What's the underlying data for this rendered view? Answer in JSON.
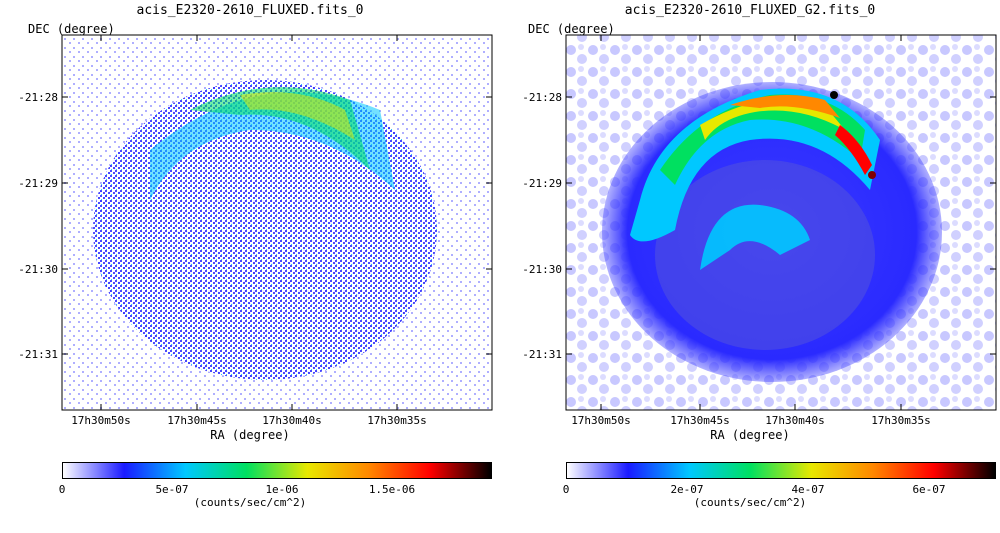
{
  "panels": [
    {
      "id": "raw",
      "title": "acis_E2320-2610_FLUXED.fits_0",
      "y_axis_label": "DEC (degree)",
      "x_axis_label": "RA (degree)",
      "dec_ticks": [
        "-21:28",
        "-21:29",
        "-21:30",
        "-21:31"
      ],
      "ra_ticks": [
        "17h30m50s",
        "17h30m45s",
        "17h30m40s",
        "17h30m35s"
      ],
      "colorbar": {
        "ticks": [
          "0",
          "5e-07",
          "1e-06",
          "1.5e-06"
        ],
        "unit": "(counts/sec/cm^2)"
      }
    },
    {
      "id": "smoothed",
      "title": "acis_E2320-2610_FLUXED_G2.fits_0",
      "y_axis_label": "DEC (degree)",
      "x_axis_label": "RA (degree)",
      "dec_ticks": [
        "-21:28",
        "-21:29",
        "-21:30",
        "-21:31"
      ],
      "ra_ticks": [
        "17h30m50s",
        "17h30m45s",
        "17h30m40s",
        "17h30m35s"
      ],
      "colorbar": {
        "ticks": [
          "0",
          "2e-07",
          "4e-07",
          "6e-07"
        ],
        "unit": "(counts/sec/cm^2)"
      }
    }
  ],
  "colormap_stops": [
    "#ffffff",
    "#1a1aff",
    "#00c8ff",
    "#00e060",
    "#e8e800",
    "#ff8800",
    "#ff0000",
    "#000000"
  ]
}
